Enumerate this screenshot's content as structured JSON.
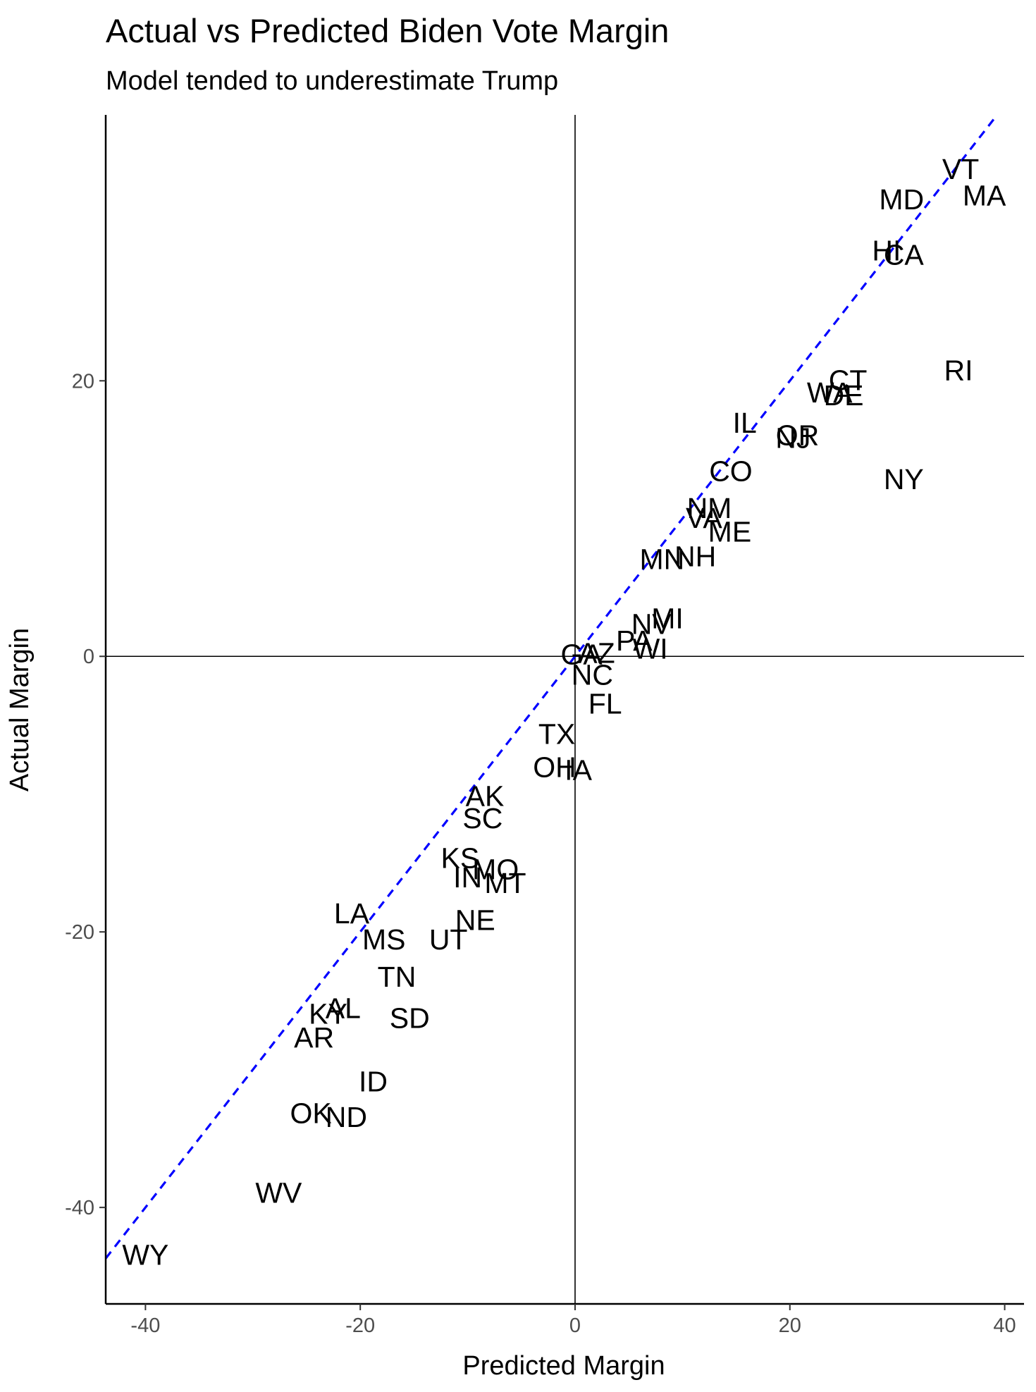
{
  "chart_data": {
    "type": "scatter",
    "title": "Actual vs Predicted Biden Vote Margin",
    "subtitle": "Model tended to underestimate Trump",
    "xlabel": "Predicted Margin",
    "ylabel": "Actual Margin",
    "xlim": [
      -43.7,
      41.8
    ],
    "ylim": [
      -47.0,
      39.3
    ],
    "x_ticks": [
      -40,
      -20,
      0,
      20,
      40
    ],
    "y_ticks": [
      -40,
      -20,
      0,
      20
    ],
    "x_tick_labels": [
      "-40",
      "-20",
      "0",
      "20",
      "40"
    ],
    "y_tick_labels": [
      "-40",
      "-20",
      "0",
      "20"
    ],
    "reference_lines": {
      "vertical_x": 0,
      "horizontal_y": 0
    },
    "identity_line": {
      "slope": 1,
      "intercept": 0,
      "style": "dashed",
      "color": "#0000ff"
    },
    "grid": false,
    "point_style": "text labels",
    "points": [
      {
        "label": "VT",
        "x": 35.9,
        "y": 35.4
      },
      {
        "label": "MA",
        "x": 38.1,
        "y": 33.5
      },
      {
        "label": "MD",
        "x": 30.4,
        "y": 33.2
      },
      {
        "label": "HI",
        "x": 29.0,
        "y": 29.5
      },
      {
        "label": "CA",
        "x": 30.6,
        "y": 29.2
      },
      {
        "label": "RI",
        "x": 35.7,
        "y": 20.8
      },
      {
        "label": "CT",
        "x": 25.4,
        "y": 20.1
      },
      {
        "label": "WA",
        "x": 23.7,
        "y": 19.2
      },
      {
        "label": "DE",
        "x": 25.0,
        "y": 19.0
      },
      {
        "label": "IL",
        "x": 15.8,
        "y": 17.0
      },
      {
        "label": "OR",
        "x": 20.7,
        "y": 16.1
      },
      {
        "label": "NJ",
        "x": 20.3,
        "y": 15.9
      },
      {
        "label": "CO",
        "x": 14.5,
        "y": 13.5
      },
      {
        "label": "NY",
        "x": 30.6,
        "y": 12.9
      },
      {
        "label": "NM",
        "x": 12.5,
        "y": 10.8
      },
      {
        "label": "VA",
        "x": 12.0,
        "y": 10.1
      },
      {
        "label": "ME",
        "x": 14.4,
        "y": 9.1
      },
      {
        "label": "NH",
        "x": 11.2,
        "y": 7.3
      },
      {
        "label": "MN",
        "x": 8.1,
        "y": 7.1
      },
      {
        "label": "MI",
        "x": 8.6,
        "y": 2.8
      },
      {
        "label": "NV",
        "x": 7.1,
        "y": 2.4
      },
      {
        "label": "PA",
        "x": 5.5,
        "y": 1.2
      },
      {
        "label": "WI",
        "x": 7.0,
        "y": 0.6
      },
      {
        "label": "AZ",
        "x": 2.0,
        "y": 0.3
      },
      {
        "label": "GA",
        "x": 0.6,
        "y": 0.2
      },
      {
        "label": "NC",
        "x": 1.6,
        "y": -1.3
      },
      {
        "label": "FL",
        "x": 2.8,
        "y": -3.4
      },
      {
        "label": "TX",
        "x": -1.7,
        "y": -5.6
      },
      {
        "label": "OH",
        "x": -1.9,
        "y": -8.0
      },
      {
        "label": "IA",
        "x": 0.3,
        "y": -8.2
      },
      {
        "label": "AK",
        "x": -8.4,
        "y": -10.1
      },
      {
        "label": "SC",
        "x": -8.6,
        "y": -11.7
      },
      {
        "label": "KS",
        "x": -10.7,
        "y": -14.6
      },
      {
        "label": "MO",
        "x": -7.4,
        "y": -15.4
      },
      {
        "label": "IN",
        "x": -10.0,
        "y": -16.0
      },
      {
        "label": "MT",
        "x": -6.5,
        "y": -16.4
      },
      {
        "label": "NE",
        "x": -9.3,
        "y": -19.1
      },
      {
        "label": "LA",
        "x": -20.8,
        "y": -18.6
      },
      {
        "label": "MS",
        "x": -17.8,
        "y": -20.5
      },
      {
        "label": "UT",
        "x": -11.8,
        "y": -20.5
      },
      {
        "label": "TN",
        "x": -16.6,
        "y": -23.2
      },
      {
        "label": "AL",
        "x": -21.6,
        "y": -25.5
      },
      {
        "label": "KY",
        "x": -23.0,
        "y": -25.9
      },
      {
        "label": "SD",
        "x": -15.4,
        "y": -26.2
      },
      {
        "label": "AR",
        "x": -24.3,
        "y": -27.6
      },
      {
        "label": "ID",
        "x": -18.8,
        "y": -30.8
      },
      {
        "label": "OK",
        "x": -24.6,
        "y": -33.1
      },
      {
        "label": "ND",
        "x": -21.3,
        "y": -33.4
      },
      {
        "label": "WV",
        "x": -27.6,
        "y": -38.9
      },
      {
        "label": "WY",
        "x": -40.0,
        "y": -43.4
      }
    ]
  }
}
